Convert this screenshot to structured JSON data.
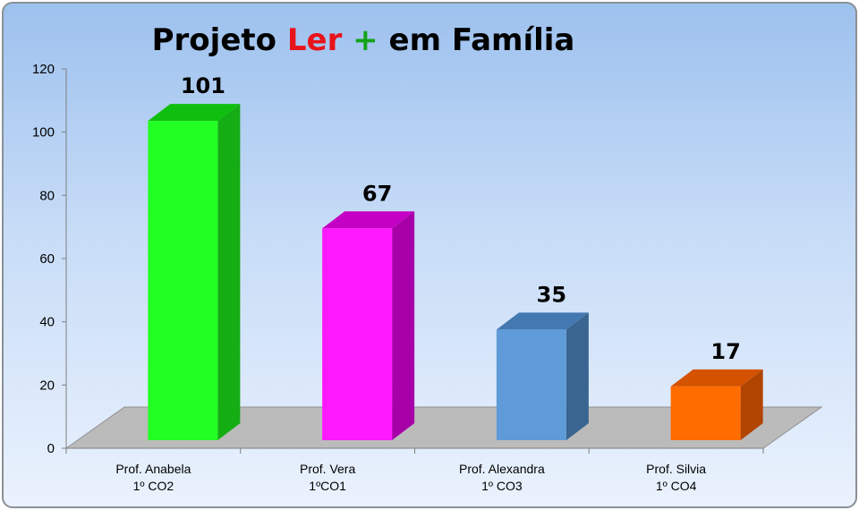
{
  "chart_data": {
    "type": "bar",
    "title_parts": [
      {
        "text": "Projeto ",
        "color": "#000000"
      },
      {
        "text": "Ler",
        "color": "#e8141b"
      },
      {
        "text": " + ",
        "color": "#13a318"
      },
      {
        "text": "em Família",
        "color": "#000000"
      }
    ],
    "categories": [
      [
        "Prof. Anabela",
        "1º CO2"
      ],
      [
        "Prof. Vera",
        "1ºCO1"
      ],
      [
        "Prof. Alexandra",
        "1º CO3"
      ],
      [
        "Prof. Silvia",
        "1º CO4"
      ]
    ],
    "values": [
      101,
      67,
      35,
      17
    ],
    "value_labels": [
      "101",
      "67",
      "35",
      "17"
    ],
    "colors": [
      {
        "front": "#22ff22",
        "side": "#14ad14",
        "top": "#0fbf0f"
      },
      {
        "front": "#ff19ff",
        "side": "#a800a8",
        "top": "#c400c4"
      },
      {
        "front": "#5e9bd8",
        "side": "#3a6590",
        "top": "#4478b0"
      },
      {
        "front": "#ff6c00",
        "side": "#b04400",
        "top": "#d45200"
      }
    ],
    "ylim": [
      0,
      120
    ],
    "yticks": [
      0,
      20,
      40,
      60,
      80,
      100,
      120
    ],
    "ytick_labels": [
      "0",
      "20",
      "40",
      "60",
      "80",
      "100",
      "120"
    ],
    "floor_color": "#bbbbbb",
    "grid": false,
    "legend": "none"
  }
}
